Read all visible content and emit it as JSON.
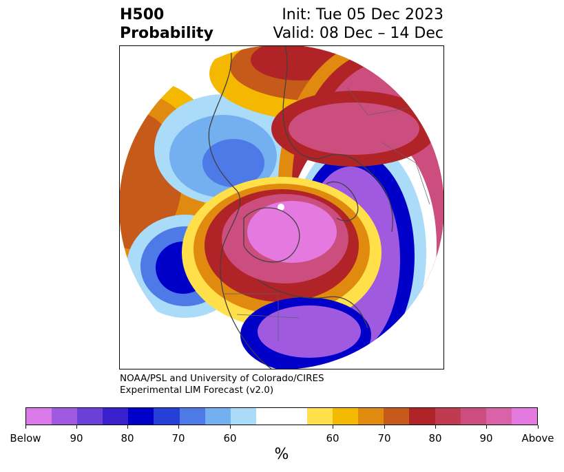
{
  "header": {
    "title_line1": "H500",
    "title_line2": "Probability",
    "init": "Init: Tue 05 Dec 2023",
    "valid": "Valid: 08 Dec – 14 Dec"
  },
  "credit": {
    "line1": "NOAA/PSL and University of Colorado/CIRES",
    "line2": "Experimental LIM Forecast (v2.0)"
  },
  "colorbar": {
    "colors": [
      "#d97ae8",
      "#9f5ae0",
      "#6b3fd8",
      "#3a1fcc",
      "#0000c8",
      "#2440d8",
      "#4d7ae6",
      "#74b0f0",
      "#aadcfa",
      "#ffffff",
      "#ffe04a",
      "#f4b800",
      "#e08a10",
      "#c65a1a",
      "#b02428",
      "#c03a50",
      "#cc4e7e",
      "#d962a8",
      "#e47ae0"
    ],
    "tick_labels": [
      "Below",
      "90",
      "80",
      "70",
      "60",
      "60",
      "70",
      "80",
      "90",
      "Above"
    ],
    "units": "%"
  },
  "map_colors": {
    "orange": "#c65a1a",
    "yellow": "#f4b800",
    "lightblue": "#aadcfa",
    "blue": "#4d7ae6",
    "darkblue": "#0000c8",
    "purple": "#9f5ae0",
    "red": "#b02428",
    "magenta": "#cc4e7e",
    "pink": "#e47ae0",
    "coast": "#404040"
  }
}
